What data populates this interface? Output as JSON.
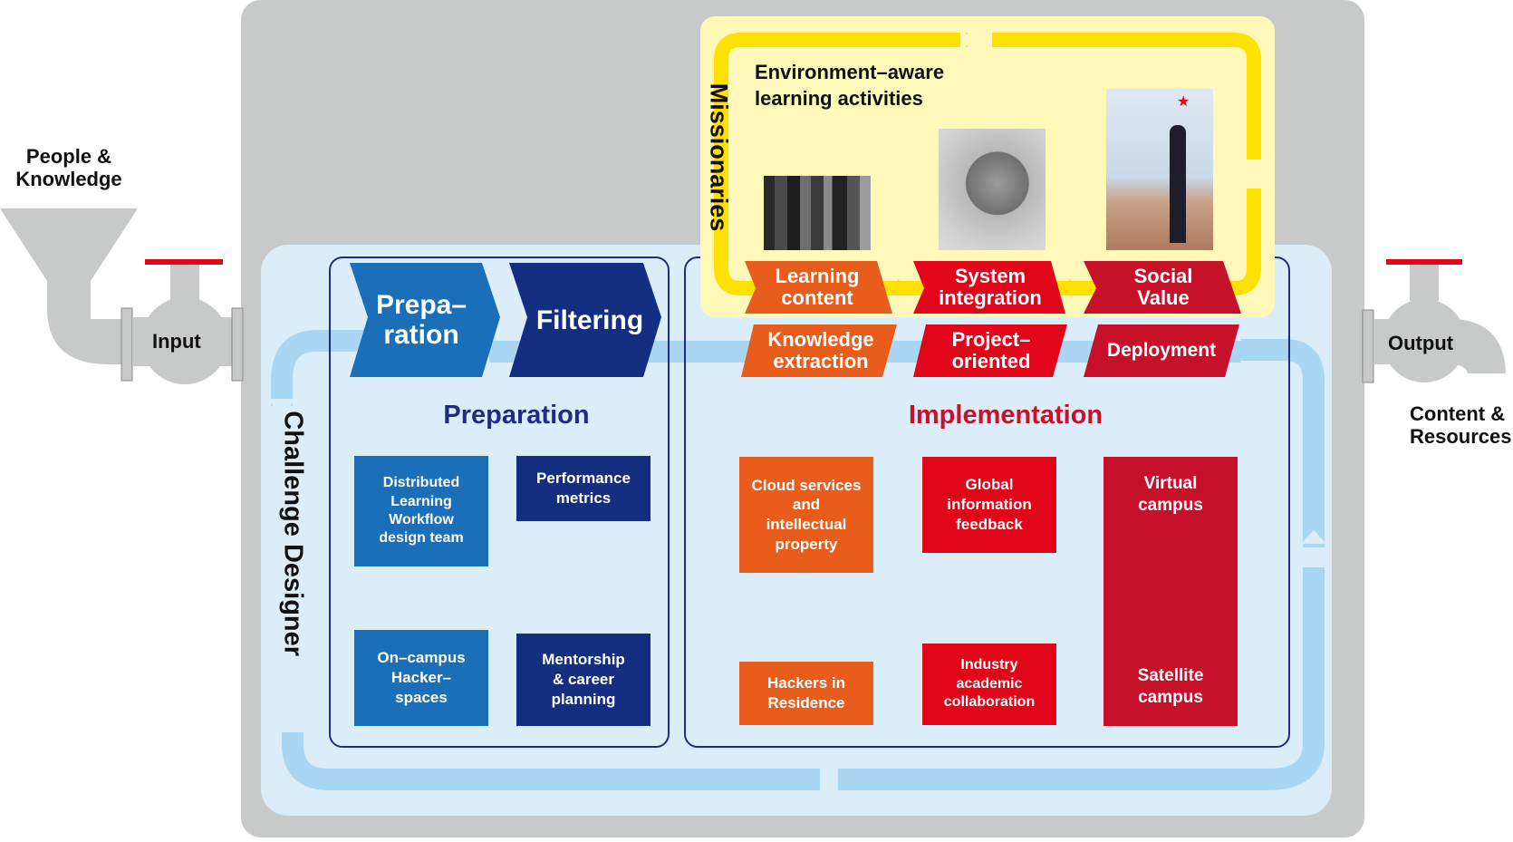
{
  "input": {
    "label": "People &\nKnowledge",
    "valve_label": "Input"
  },
  "output": {
    "valve_label": "Output",
    "label": "Content &\nResources"
  },
  "challenge_designer": "Challenge Designer",
  "missionaries": {
    "title": "Missionaries",
    "heading": "Environment–aware\nlearning activities",
    "stages": [
      "Learning\ncontent",
      "System\nintegration",
      "Social\nValue"
    ]
  },
  "preparation": {
    "arrows": [
      "Prepa–\nration",
      "Filtering"
    ],
    "title": "Preparation",
    "boxes": [
      "Distributed\nLearning\nWorkflow\ndesign team",
      "Performance\nmetrics",
      "On–campus\nHacker–\nspaces",
      "Mentorship\n& career\nplanning"
    ]
  },
  "implementation": {
    "arrows": [
      "Knowledge\nextraction",
      "Project–\noriented",
      "Deployment"
    ],
    "title": "Implementation",
    "boxes": [
      "Cloud services\nand\nintellectual\nproperty",
      "Global\ninformation\nfeedback",
      "Hackers in\nResidence",
      "Industry\nacademic\ncollaboration"
    ],
    "tall_box_top": "Virtual\ncampus",
    "tall_box_bottom": "Satellite\ncampus"
  },
  "colors": {
    "gray": "#c8c9c9",
    "light_blue": "#dcedfa",
    "flow_blue": "#a9d7f3",
    "yellow_panel": "#fff8b8",
    "yellow_arrow": "#ffe100",
    "dark_blue": "#1f2c84",
    "mid_blue": "#1b6fb8",
    "navy": "#142e82",
    "orange": "#e95d1c",
    "red": "#e2051a",
    "crimson": "#c7102a"
  }
}
